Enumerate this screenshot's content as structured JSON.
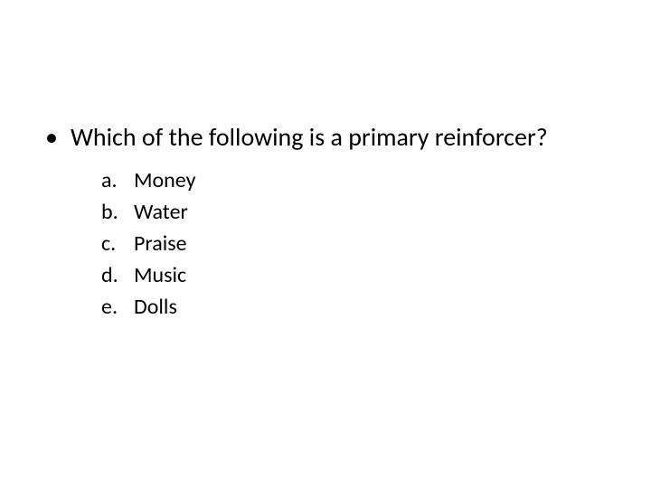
{
  "slide": {
    "background_color": "#ffffff",
    "text_color": "#000000",
    "question_fontsize": 28,
    "option_fontsize": 24
  },
  "question": {
    "bullet": "•",
    "text": "Which of the following is a primary reinforcer?"
  },
  "options": [
    {
      "letter": "a.",
      "text": "Money"
    },
    {
      "letter": "b.",
      "text": "Water"
    },
    {
      "letter": "c.",
      "text": "Praise"
    },
    {
      "letter": "d.",
      "text": "Music"
    },
    {
      "letter": "e.",
      "text": "Dolls"
    }
  ]
}
